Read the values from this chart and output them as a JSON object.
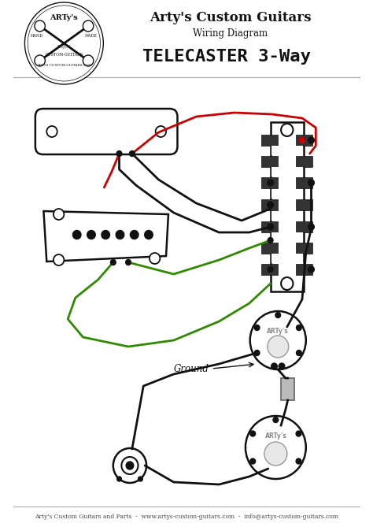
{
  "bg_color": "#ffffff",
  "title1": "Arty's Custom Guitars",
  "title2": "Wiring Diagram",
  "title3": "TELECASTER 3-Way",
  "footer": "Arty's Custom Guitars and Parts  -  www.artys-custom-guitars.com  -  info@artys-custom-guitars.com",
  "ground_label": "Ground",
  "line_colors": {
    "red": "#cc0000",
    "green": "#2e8b00",
    "black": "#111111"
  },
  "gray": "#999999",
  "dark_gray": "#555555",
  "component_gray": "#aaaaaa"
}
